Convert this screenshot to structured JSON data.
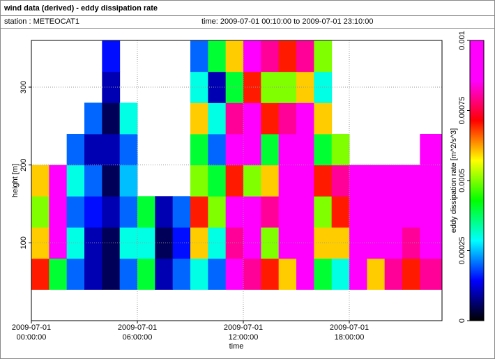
{
  "chart_data": {
    "type": "heatmap",
    "title": "wind data (derived) - eddy dissipation rate",
    "station": "station : METEOCAT1",
    "time_range": "time: 2009-07-01 00:10:00 to 2009-07-01 23:10:00",
    "x_label": "time",
    "y_label": "height [m]",
    "colorbar_label": "eddy dissipation rate [m^2/s^3]",
    "xlim": [
      0,
      23.25
    ],
    "ylim": [
      0,
      360
    ],
    "xticks": [
      {
        "value": 0,
        "label": "2009-07-01\n00:00:00"
      },
      {
        "value": 6,
        "label": "2009-07-01\n06:00:00"
      },
      {
        "value": 12,
        "label": "2009-07-01\n12:00:00"
      },
      {
        "value": 18,
        "label": "2009-07-01\n18:00:00"
      }
    ],
    "yticks": [
      100,
      200,
      300
    ],
    "grid": true,
    "xbins": [
      0,
      1,
      2,
      3,
      4,
      5,
      6,
      7,
      8,
      9,
      10,
      11,
      12,
      13,
      14,
      15,
      16,
      17,
      18,
      19,
      20,
      21,
      22,
      23.25
    ],
    "ybins": [
      40,
      80,
      120,
      160,
      200,
      240,
      280,
      320,
      360
    ],
    "clim": [
      0,
      0.001
    ],
    "cticks": [
      0,
      0.00025,
      0.0005,
      0.00075,
      0.001
    ],
    "colormap": [
      "#000000",
      "#0000ff",
      "#00ffff",
      "#00ff00",
      "#ffff00",
      "#ff0000",
      "#ff00ff",
      "#ff00ff"
    ],
    "values": [
      [
        0.0007,
        0.0006,
        0.0005,
        0.0006,
        null,
        null,
        null,
        null
      ],
      [
        0.0004,
        0.0009,
        0.001,
        0.0009,
        null,
        null,
        null,
        null
      ],
      [
        0.0002,
        0.0003,
        0.0002,
        0.0003,
        0.0002,
        null,
        null,
        null
      ],
      [
        0.0001,
        0.0001,
        0.00015,
        0.0002,
        0.0001,
        0.0002,
        null,
        null
      ],
      [
        5e-05,
        5e-05,
        0.0001,
        5e-05,
        0.0001,
        5e-05,
        0.0001,
        0.00015
      ],
      [
        0.0002,
        0.0003,
        0.0002,
        0.00025,
        0.0002,
        0.0003,
        null,
        null
      ],
      [
        0.0004,
        0.0003,
        0.0004,
        null,
        null,
        null,
        null,
        null
      ],
      [
        0.0001,
        5e-05,
        0.0001,
        null,
        null,
        null,
        null,
        null
      ],
      [
        0.0002,
        0.00015,
        0.0002,
        null,
        null,
        null,
        null,
        null
      ],
      [
        0.0003,
        0.0006,
        0.0007,
        0.0005,
        0.0004,
        0.0006,
        0.0003,
        0.0002
      ],
      [
        0.0002,
        0.0003,
        0.0005,
        0.0004,
        0.0002,
        0.0003,
        0.0001,
        0.0004
      ],
      [
        0.0009,
        0.0008,
        0.001,
        0.0007,
        0.0009,
        0.0008,
        0.0004,
        0.0006
      ],
      [
        0.0008,
        0.001,
        0.001,
        0.0005,
        0.0009,
        0.001,
        0.0007,
        0.0009
      ],
      [
        0.0007,
        0.0005,
        0.0008,
        0.0006,
        0.0004,
        0.0007,
        0.0005,
        0.0008
      ],
      [
        0.0006,
        0.001,
        0.001,
        0.001,
        0.0009,
        0.0008,
        0.0005,
        0.0007
      ],
      [
        0.0009,
        0.001,
        0.001,
        0.001,
        0.001,
        0.0009,
        0.0006,
        0.0008
      ],
      [
        0.0004,
        0.0006,
        0.0005,
        0.0007,
        0.0004,
        0.0006,
        0.0003,
        0.0005
      ],
      [
        0.0003,
        0.0006,
        0.0007,
        0.0008,
        0.0005,
        null,
        null,
        null
      ],
      [
        0.001,
        0.001,
        0.001,
        0.001,
        null,
        null,
        null,
        null
      ],
      [
        0.0006,
        0.0009,
        0.001,
        0.0009,
        null,
        null,
        null,
        null
      ],
      [
        0.0008,
        0.001,
        0.001,
        0.001,
        null,
        null,
        null,
        null
      ],
      [
        0.0007,
        0.0008,
        0.0009,
        0.001,
        null,
        null,
        null,
        null
      ],
      [
        0.0008,
        0.0009,
        0.001,
        0.001,
        0.0009,
        null,
        null,
        null
      ]
    ]
  }
}
